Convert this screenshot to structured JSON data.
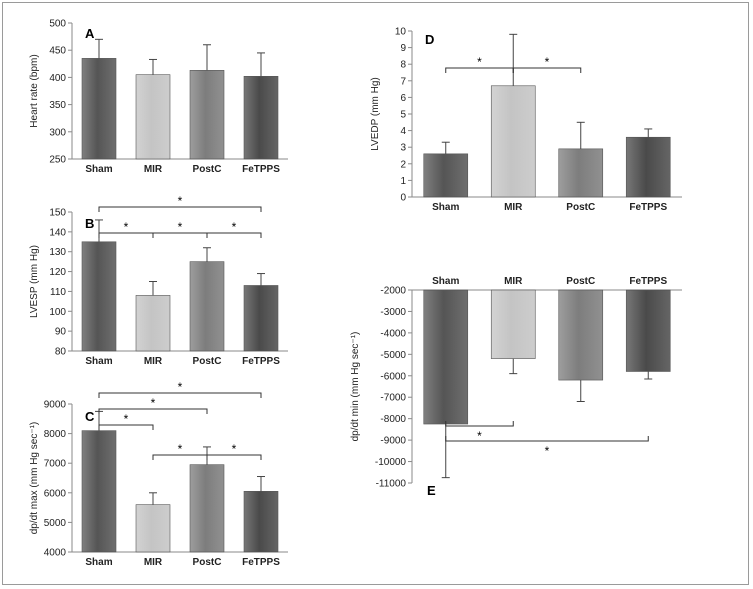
{
  "figure": {
    "bar_colors": {
      "Sham": "#555555",
      "MIR": "#c4c4c4",
      "PostC": "#7d7d7d",
      "FeTPPS": "#4a4a4a"
    },
    "axis_color": "#8a8a8a",
    "sig_symbol": "*"
  },
  "chart_data": [
    {
      "id": "A",
      "type": "bar",
      "panel_label": "A",
      "ylabel": "Heart rate (bpm)",
      "categories": [
        "Sham",
        "MIR",
        "PostC",
        "FeTPPS"
      ],
      "values": [
        435,
        405,
        413,
        402
      ],
      "errors": [
        35,
        28,
        47,
        43
      ],
      "ylim": [
        250,
        500
      ],
      "yticks": [
        250,
        300,
        350,
        400,
        450,
        500
      ],
      "significance": []
    },
    {
      "id": "B",
      "type": "bar",
      "panel_label": "B",
      "ylabel": "LVESP (mm Hg)",
      "categories": [
        "Sham",
        "MIR",
        "PostC",
        "FeTPPS"
      ],
      "values": [
        135,
        108,
        125,
        113
      ],
      "errors": [
        11,
        7,
        7,
        6
      ],
      "ylim": [
        80,
        150
      ],
      "yticks": [
        80,
        90,
        100,
        110,
        120,
        130,
        140,
        150
      ],
      "significance": [
        {
          "from": "Sham",
          "to": "MIR",
          "label": "*"
        },
        {
          "from": "MIR",
          "to": "PostC",
          "label": "*"
        },
        {
          "from": "PostC",
          "to": "FeTPPS",
          "label": "*"
        },
        {
          "from": "Sham",
          "to": "FeTPPS",
          "label": "*"
        }
      ]
    },
    {
      "id": "C",
      "type": "bar",
      "panel_label": "C",
      "ylabel": "dp/dt max (mm Hg sec⁻¹)",
      "categories": [
        "Sham",
        "MIR",
        "PostC",
        "FeTPPS"
      ],
      "values": [
        8100,
        5600,
        6950,
        6050
      ],
      "errors": [
        650,
        400,
        600,
        500
      ],
      "ylim": [
        4000,
        9000
      ],
      "yticks": [
        4000,
        5000,
        6000,
        7000,
        8000,
        9000
      ],
      "significance": [
        {
          "from": "Sham",
          "to": "MIR",
          "label": "*"
        },
        {
          "from": "Sham",
          "to": "PostC",
          "label": "*"
        },
        {
          "from": "Sham",
          "to": "FeTPPS",
          "label": "*"
        },
        {
          "from": "MIR",
          "to": "PostC",
          "label": "*"
        },
        {
          "from": "PostC",
          "to": "FeTPPS",
          "label": "*"
        }
      ]
    },
    {
      "id": "D",
      "type": "bar",
      "panel_label": "D",
      "ylabel": "LVEDP (mm Hg)",
      "categories": [
        "Sham",
        "MIR",
        "PostC",
        "FeTPPS"
      ],
      "values": [
        2.6,
        6.7,
        2.9,
        3.6
      ],
      "errors": [
        0.7,
        3.1,
        1.6,
        0.5
      ],
      "ylim": [
        0,
        10
      ],
      "yticks": [
        0,
        1,
        2,
        3,
        4,
        5,
        6,
        7,
        8,
        9,
        10
      ],
      "significance": [
        {
          "from": "Sham",
          "to": "MIR",
          "label": "*"
        },
        {
          "from": "MIR",
          "to": "PostC",
          "label": "*"
        }
      ]
    },
    {
      "id": "E",
      "type": "bar",
      "panel_label": "E",
      "ylabel": "dp/dt min (mm Hg sec⁻¹)",
      "categories": [
        "Sham",
        "MIR",
        "PostC",
        "FeTPPS"
      ],
      "values": [
        -8250,
        -5200,
        -6200,
        -5800
      ],
      "errors": [
        2500,
        700,
        1000,
        350
      ],
      "ylim": [
        -11000,
        -2000
      ],
      "yticks": [
        -2000,
        -3000,
        -4000,
        -5000,
        -6000,
        -7000,
        -8000,
        -9000,
        -10000,
        -11000
      ],
      "significance": [
        {
          "from": "Sham",
          "to": "MIR",
          "label": "*"
        },
        {
          "from": "Sham",
          "to": "FeTPPS",
          "label": "*"
        }
      ]
    }
  ]
}
